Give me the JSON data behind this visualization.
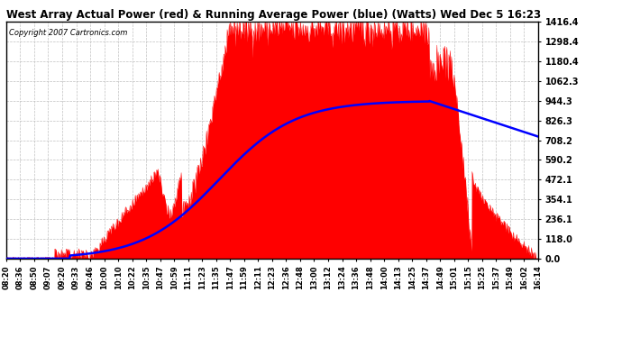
{
  "title": "West Array Actual Power (red) & Running Average Power (blue) (Watts) Wed Dec 5 16:23",
  "copyright": "Copyright 2007 Cartronics.com",
  "background_color": "#ffffff",
  "plot_bg_color": "#ffffff",
  "grid_color": "#c0c0c0",
  "actual_color": "red",
  "avg_color": "blue",
  "ylim": [
    0.0,
    1416.4
  ],
  "yticks": [
    0.0,
    118.0,
    236.1,
    354.1,
    472.1,
    590.2,
    708.2,
    826.3,
    944.3,
    1062.3,
    1180.4,
    1298.4,
    1416.4
  ],
  "ytick_labels": [
    "0.0",
    "118.0",
    "236.1",
    "354.1",
    "472.1",
    "590.2",
    "708.2",
    "826.3",
    "944.3",
    "1062.3",
    "1180.4",
    "1298.4",
    "1416.4"
  ],
  "time_labels": [
    "08:20",
    "08:36",
    "08:50",
    "09:07",
    "09:20",
    "09:33",
    "09:46",
    "10:00",
    "10:10",
    "10:22",
    "10:35",
    "10:47",
    "10:59",
    "11:11",
    "11:23",
    "11:35",
    "11:47",
    "11:59",
    "12:11",
    "12:23",
    "12:36",
    "12:48",
    "13:00",
    "13:12",
    "13:24",
    "13:36",
    "13:48",
    "14:00",
    "14:13",
    "14:25",
    "14:37",
    "14:49",
    "15:01",
    "15:15",
    "15:25",
    "15:37",
    "15:49",
    "16:02",
    "16:14"
  ]
}
